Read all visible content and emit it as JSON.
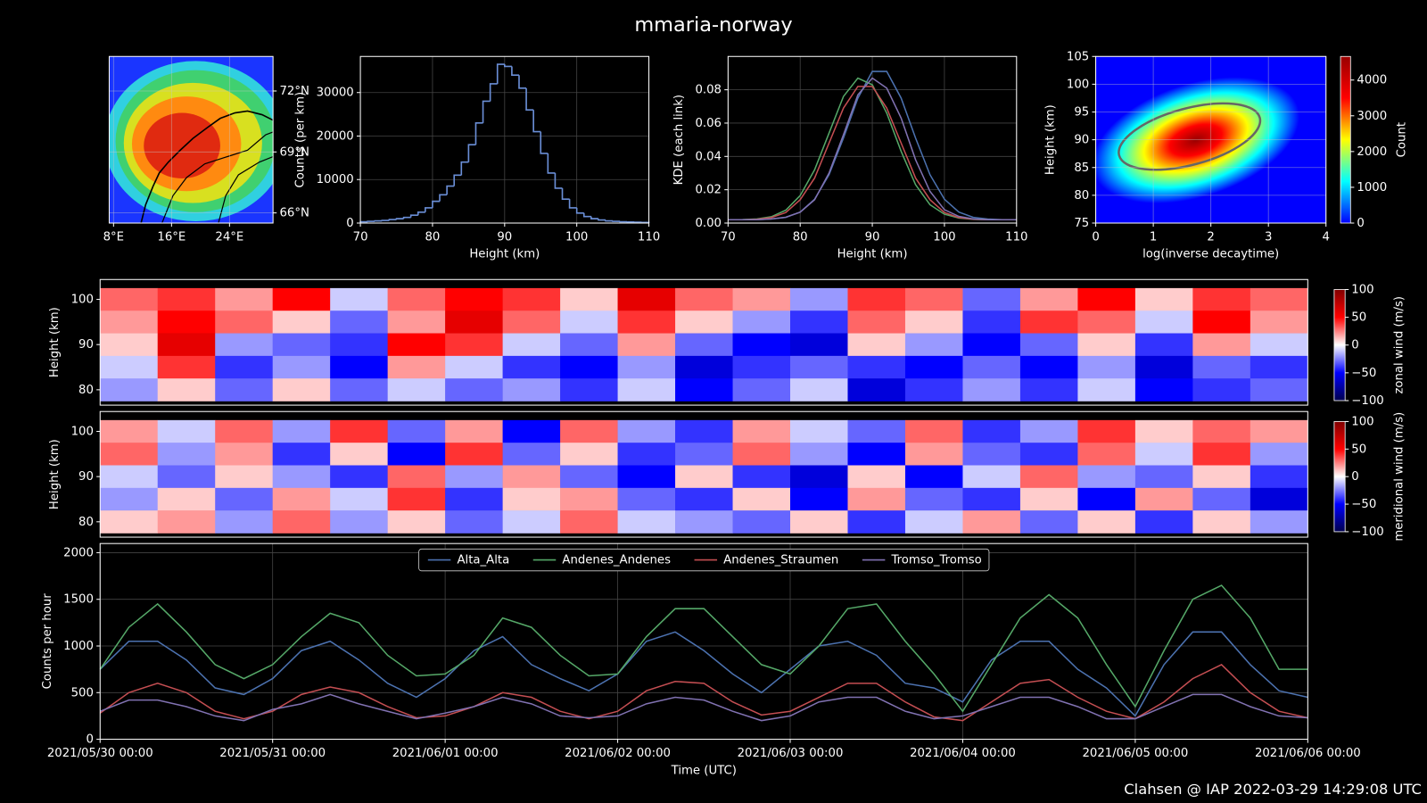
{
  "title": "mmaria-norway",
  "footer": "Clahsen @ IAP 2022-03-29 14:29:08 UTC",
  "chart_data": [
    {
      "type": "map",
      "xlim": [
        7.4,
        30
      ],
      "ylim": [
        65.5,
        73.7
      ],
      "xticks": [
        {
          "value": 8,
          "label": "8°E"
        },
        {
          "value": 16,
          "label": "16°E"
        },
        {
          "value": 24,
          "label": "24°E"
        }
      ],
      "yticks": [
        {
          "value": 66,
          "label": "66°N"
        },
        {
          "value": 69,
          "label": "69°N"
        },
        {
          "value": 72,
          "label": "72°N"
        }
      ],
      "grid": true
    },
    {
      "type": "histogram",
      "xlabel": "Height (km)",
      "ylabel": "Counts (per km)",
      "color": "#6a8ed6",
      "bins": [
        70,
        71,
        72,
        73,
        74,
        75,
        76,
        77,
        78,
        79,
        80,
        81,
        82,
        83,
        84,
        85,
        86,
        87,
        88,
        89,
        90,
        91,
        92,
        93,
        94,
        95,
        96,
        97,
        98,
        99,
        100,
        101,
        102,
        103,
        104,
        105,
        106,
        107,
        108,
        109,
        110
      ],
      "values": [
        300,
        400,
        500,
        600,
        800,
        1000,
        1300,
        1800,
        2500,
        3500,
        5000,
        6500,
        8500,
        11000,
        14000,
        18000,
        23000,
        28000,
        32000,
        36500,
        36000,
        34000,
        31000,
        26000,
        21000,
        16000,
        11500,
        8000,
        5500,
        3500,
        2300,
        1500,
        1000,
        700,
        500,
        400,
        300,
        250,
        200,
        150
      ],
      "xlim": [
        70,
        110
      ],
      "ylim": [
        0,
        38300
      ],
      "xticks": [
        70,
        80,
        90,
        100,
        110
      ],
      "yticks": [
        0,
        10000,
        20000,
        30000
      ],
      "grid": true
    },
    {
      "type": "line",
      "xlabel": "Height (km)",
      "ylabel": "KDE (each link)",
      "x": [
        70,
        72,
        74,
        76,
        78,
        80,
        82,
        84,
        86,
        88,
        90,
        92,
        94,
        96,
        98,
        100,
        102,
        104,
        106,
        108,
        110
      ],
      "series": [
        {
          "color": "#4c72b0",
          "values": [
            0.002,
            0.002,
            0.002,
            0.0024,
            0.0034,
            0.0066,
            0.0143,
            0.029,
            0.051,
            0.075,
            0.091,
            0.091,
            0.075,
            0.051,
            0.029,
            0.0143,
            0.0066,
            0.0034,
            0.0024,
            0.002,
            0.002
          ]
        },
        {
          "color": "#55a868",
          "values": [
            0.002,
            0.0021,
            0.0025,
            0.0038,
            0.0077,
            0.0165,
            0.032,
            0.054,
            0.076,
            0.087,
            0.083,
            0.066,
            0.043,
            0.023,
            0.011,
            0.0053,
            0.003,
            0.0022,
            0.002,
            0.002,
            0.002
          ]
        },
        {
          "color": "#c44e52",
          "values": [
            0.002,
            0.002,
            0.0023,
            0.0033,
            0.0063,
            0.014,
            0.027,
            0.048,
            0.069,
            0.082,
            0.082,
            0.069,
            0.048,
            0.027,
            0.014,
            0.0063,
            0.0033,
            0.0023,
            0.002,
            0.002,
            0.002
          ]
        },
        {
          "color": "#8172b2",
          "values": [
            0.002,
            0.002,
            0.002,
            0.0025,
            0.0035,
            0.0065,
            0.014,
            0.03,
            0.053,
            0.077,
            0.087,
            0.081,
            0.063,
            0.038,
            0.019,
            0.008,
            0.004,
            0.0025,
            0.002,
            0.002,
            0.002
          ]
        }
      ],
      "xlim": [
        70,
        110
      ],
      "ylim": [
        0,
        0.1
      ],
      "xticks": [
        70,
        80,
        90,
        100,
        110
      ],
      "yticks": [
        {
          "value": 0,
          "label": "0.00"
        },
        0.02,
        0.04,
        0.06,
        0.08
      ],
      "grid": true
    },
    {
      "type": "hist2d",
      "xlabel": "log(inverse decaytime)",
      "ylabel": "Height (km)",
      "xlim": [
        0,
        4
      ],
      "ylim": [
        75,
        105
      ],
      "xticks": [
        0,
        1,
        2,
        3,
        4
      ],
      "yticks": [
        75,
        80,
        85,
        90,
        95,
        100,
        105
      ],
      "grid": true,
      "colormap": [
        "#0000ff",
        "#00ffff",
        "#ffff00",
        "#ff0000",
        "#990000"
      ],
      "colorbar": {
        "label": "Count",
        "clim": [
          0,
          4660
        ],
        "ticks": [
          0,
          1000,
          2000,
          3000,
          4000
        ]
      }
    },
    {
      "type": "heatmap",
      "ylabel": "Height (km)",
      "x": [
        "2021/05/30 04:00",
        "2021/05/30 12:00",
        "2021/05/30 20:00",
        "2021/05/31 04:00",
        "2021/05/31 12:00",
        "2021/05/31 20:00",
        "2021/06/01 04:00",
        "2021/06/01 12:00",
        "2021/06/01 20:00",
        "2021/06/02 04:00",
        "2021/06/02 12:00",
        "2021/06/02 20:00",
        "2021/06/03 04:00",
        "2021/06/03 12:00",
        "2021/06/03 20:00",
        "2021/06/04 04:00",
        "2021/06/04 12:00",
        "2021/06/04 20:00",
        "2021/06/05 04:00",
        "2021/06/05 12:00",
        "2021/06/05 20:00"
      ],
      "y": [
        100,
        95,
        90,
        85,
        80
      ],
      "values": [
        [
          30,
          40,
          20,
          50,
          -10,
          30,
          50,
          40,
          10,
          60,
          30,
          20,
          -20,
          40,
          30,
          -30,
          20,
          50,
          10,
          40,
          30
        ],
        [
          20,
          50,
          30,
          10,
          -30,
          20,
          60,
          30,
          -10,
          40,
          10,
          -20,
          -40,
          30,
          10,
          -40,
          40,
          30,
          -10,
          50,
          20
        ],
        [
          10,
          60,
          -20,
          -30,
          -40,
          50,
          40,
          -10,
          -30,
          20,
          -30,
          -50,
          -60,
          10,
          -20,
          -50,
          -30,
          10,
          -40,
          20,
          -10
        ],
        [
          -10,
          40,
          -40,
          -20,
          -50,
          20,
          -10,
          -40,
          -50,
          -20,
          -60,
          -40,
          -30,
          -40,
          -50,
          -30,
          -50,
          -20,
          -60,
          -30,
          -40
        ],
        [
          -20,
          10,
          -30,
          10,
          -30,
          -10,
          -30,
          -20,
          -40,
          -10,
          -50,
          -30,
          -10,
          -60,
          -40,
          -20,
          -40,
          -10,
          -50,
          -40,
          -30
        ]
      ],
      "xlim": [
        "2021/05/30 00:00",
        "2021/06/06 00:00"
      ],
      "ylim": [
        76.6,
        104.4
      ],
      "yticks": [
        80,
        90,
        100
      ],
      "colormap": [
        "#00004d",
        "#0000ff",
        "#ffffff",
        "#ff0000",
        "#800000"
      ],
      "colorbar": {
        "label": "zonal wind (m/s)",
        "clim": [
          -100,
          100
        ],
        "ticks": [
          {
            "value": -100,
            "label": "−100"
          },
          {
            "value": -50,
            "label": "−50"
          },
          0,
          50,
          100
        ]
      }
    },
    {
      "type": "heatmap",
      "ylabel": "Height (km)",
      "x": [
        "2021/05/30 04:00",
        "2021/05/30 12:00",
        "2021/05/30 20:00",
        "2021/05/31 04:00",
        "2021/05/31 12:00",
        "2021/05/31 20:00",
        "2021/06/01 04:00",
        "2021/06/01 12:00",
        "2021/06/01 20:00",
        "2021/06/02 04:00",
        "2021/06/02 12:00",
        "2021/06/02 20:00",
        "2021/06/03 04:00",
        "2021/06/03 12:00",
        "2021/06/03 20:00",
        "2021/06/04 04:00",
        "2021/06/04 12:00",
        "2021/06/04 20:00",
        "2021/06/05 04:00",
        "2021/06/05 12:00",
        "2021/06/05 20:00"
      ],
      "y": [
        100,
        95,
        90,
        85,
        80
      ],
      "values": [
        [
          20,
          -10,
          30,
          -20,
          40,
          -30,
          20,
          -50,
          30,
          -20,
          -40,
          20,
          -10,
          -30,
          30,
          -40,
          -20,
          40,
          10,
          30,
          20
        ],
        [
          30,
          -20,
          20,
          -40,
          10,
          -50,
          40,
          -30,
          10,
          -40,
          -30,
          30,
          -20,
          -50,
          20,
          -30,
          -40,
          30,
          -10,
          40,
          -20
        ],
        [
          -10,
          -30,
          10,
          -20,
          -40,
          30,
          -20,
          20,
          -30,
          -50,
          10,
          -40,
          -60,
          10,
          -50,
          -10,
          30,
          -20,
          -30,
          10,
          -40
        ],
        [
          -20,
          10,
          -30,
          20,
          -10,
          40,
          -40,
          10,
          20,
          -30,
          -40,
          10,
          -50,
          20,
          -30,
          -40,
          10,
          -50,
          20,
          -30,
          -60
        ],
        [
          10,
          20,
          -20,
          30,
          -20,
          10,
          -30,
          -10,
          30,
          -10,
          -20,
          -30,
          10,
          -40,
          -10,
          20,
          -30,
          10,
          -40,
          10,
          -20
        ]
      ],
      "xlim": [
        "2021/05/30 00:00",
        "2021/06/06 00:00"
      ],
      "ylim": [
        76.6,
        104.4
      ],
      "yticks": [
        80,
        90,
        100
      ],
      "colormap": [
        "#00004d",
        "#0000ff",
        "#ffffff",
        "#ff0000",
        "#800000"
      ],
      "colorbar": {
        "label": "meridional wind (m/s)",
        "clim": [
          -100,
          100
        ],
        "ticks": [
          {
            "value": -100,
            "label": "−100"
          },
          {
            "value": -50,
            "label": "−50"
          },
          0,
          50,
          100
        ]
      }
    },
    {
      "type": "line",
      "xlabel": "Time (UTC)",
      "ylabel": "Counts per hour",
      "legend": "upper center",
      "x": [
        "2021/05/30 00:00",
        "2021/05/30 04:00",
        "2021/05/30 08:00",
        "2021/05/30 12:00",
        "2021/05/30 16:00",
        "2021/05/30 20:00",
        "2021/05/31 00:00",
        "2021/05/31 04:00",
        "2021/05/31 08:00",
        "2021/05/31 12:00",
        "2021/05/31 16:00",
        "2021/05/31 20:00",
        "2021/06/01 00:00",
        "2021/06/01 04:00",
        "2021/06/01 08:00",
        "2021/06/01 12:00",
        "2021/06/01 16:00",
        "2021/06/01 20:00",
        "2021/06/02 00:00",
        "2021/06/02 04:00",
        "2021/06/02 08:00",
        "2021/06/02 12:00",
        "2021/06/02 16:00",
        "2021/06/02 20:00",
        "2021/06/03 00:00",
        "2021/06/03 04:00",
        "2021/06/03 08:00",
        "2021/06/03 12:00",
        "2021/06/03 16:00",
        "2021/06/03 20:00",
        "2021/06/04 00:00",
        "2021/06/04 04:00",
        "2021/06/04 08:00",
        "2021/06/04 12:00",
        "2021/06/04 16:00",
        "2021/06/04 20:00",
        "2021/06/05 00:00",
        "2021/06/05 04:00",
        "2021/06/05 08:00",
        "2021/06/05 12:00",
        "2021/06/05 16:00",
        "2021/06/05 20:00",
        "2021/06/06 00:00"
      ],
      "series": [
        {
          "name": "Alta_Alta",
          "color": "#4c72b0",
          "values": [
            750,
            1050,
            1050,
            850,
            550,
            480,
            650,
            950,
            1050,
            850,
            600,
            450,
            650,
            950,
            1100,
            800,
            650,
            520,
            700,
            1050,
            1150,
            950,
            700,
            500,
            750,
            1000,
            1050,
            900,
            600,
            550,
            400,
            850,
            1050,
            1050,
            750,
            550,
            250,
            800,
            1150,
            1150,
            800,
            520,
            450
          ]
        },
        {
          "name": "Andenes_Andenes",
          "color": "#55a868",
          "values": [
            750,
            1200,
            1450,
            1150,
            800,
            650,
            800,
            1100,
            1350,
            1250,
            900,
            680,
            700,
            900,
            1300,
            1200,
            900,
            680,
            700,
            1100,
            1400,
            1400,
            1100,
            800,
            700,
            1000,
            1400,
            1450,
            1050,
            700,
            300,
            800,
            1300,
            1550,
            1300,
            800,
            350,
            950,
            1500,
            1650,
            1300,
            750,
            750
          ]
        },
        {
          "name": "Andenes_Straumen",
          "color": "#c44e52",
          "values": [
            280,
            500,
            600,
            500,
            300,
            220,
            300,
            480,
            560,
            500,
            350,
            230,
            250,
            350,
            500,
            450,
            300,
            220,
            300,
            520,
            620,
            600,
            400,
            260,
            300,
            450,
            600,
            600,
            400,
            240,
            200,
            400,
            600,
            640,
            450,
            300,
            220,
            400,
            650,
            800,
            500,
            300,
            230
          ]
        },
        {
          "name": "Tromso_Tromso",
          "color": "#8172b2",
          "values": [
            300,
            420,
            420,
            350,
            250,
            200,
            320,
            380,
            480,
            380,
            300,
            220,
            280,
            350,
            450,
            380,
            250,
            230,
            250,
            380,
            450,
            420,
            300,
            200,
            250,
            400,
            450,
            450,
            300,
            220,
            250,
            350,
            450,
            450,
            350,
            220,
            220,
            350,
            480,
            480,
            350,
            250,
            230
          ]
        }
      ],
      "xlim": [
        "2021/05/30 00:00",
        "2021/06/06 00:00"
      ],
      "ylim": [
        0,
        2098
      ],
      "xticks": [
        "2021/05/30 00:00",
        "2021/05/31 00:00",
        "2021/06/01 00:00",
        "2021/06/02 00:00",
        "2021/06/03 00:00",
        "2021/06/04 00:00",
        "2021/06/05 00:00",
        "2021/06/06 00:00"
      ],
      "yticks": [
        0,
        500,
        1000,
        1500,
        2000
      ],
      "grid": true
    }
  ]
}
